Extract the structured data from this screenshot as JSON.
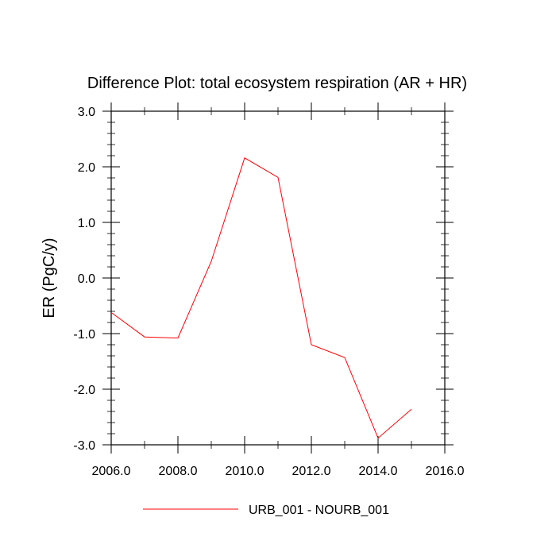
{
  "chart_data": {
    "type": "line",
    "title": "Difference Plot: total ecosystem respiration (AR + HR)",
    "xlabel": "",
    "ylabel": "ER  (PgC/y)",
    "xlim": [
      2006,
      2016
    ],
    "ylim": [
      -3,
      3
    ],
    "x_ticks": [
      2006,
      2008,
      2010,
      2012,
      2014,
      2016
    ],
    "x_tick_labels": [
      "2006.0",
      "2008.0",
      "2010.0",
      "2012.0",
      "2014.0",
      "2016.0"
    ],
    "y_ticks": [
      3,
      2,
      1,
      0,
      -1,
      -2,
      -3
    ],
    "y_tick_labels": [
      "3.0",
      "2.0",
      "1.0",
      "0.0",
      "-1.0",
      "-2.0",
      "-3.0"
    ],
    "grid": false,
    "legend_position": "bottom",
    "series": [
      {
        "name": "URB_001 - NOURB_001",
        "color": "#ff0000",
        "x": [
          2006,
          2007,
          2008,
          2009,
          2010,
          2011,
          2012,
          2013,
          2014,
          2015
        ],
        "y": [
          -0.62,
          -1.06,
          -1.08,
          0.3,
          2.16,
          1.81,
          -1.2,
          -1.43,
          -2.88,
          -2.36
        ]
      }
    ]
  }
}
